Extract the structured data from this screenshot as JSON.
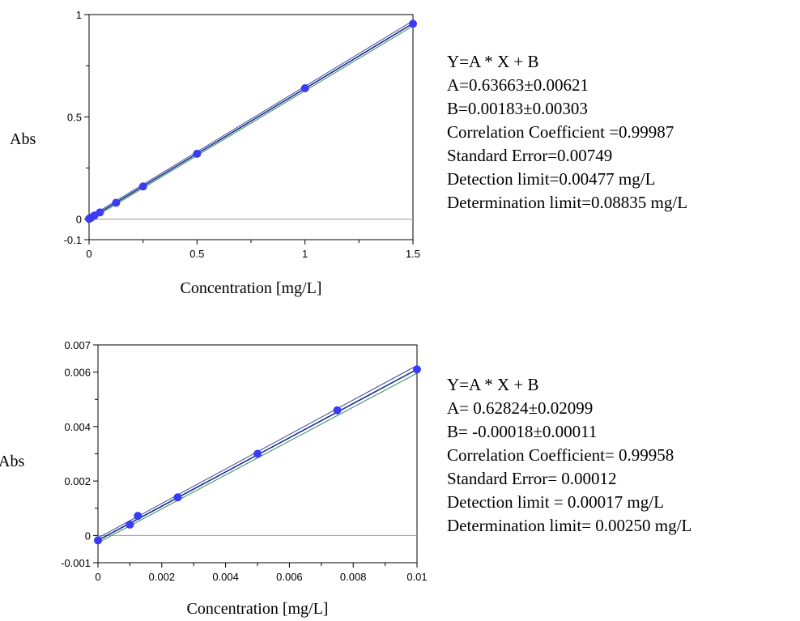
{
  "chart_data": [
    {
      "type": "scatter",
      "title": "",
      "xlabel": "Concentration [mg/L]",
      "ylabel": "Abs",
      "xlim": [
        0,
        1.5
      ],
      "ylim": [
        -0.1,
        1
      ],
      "x_ticks": [
        0,
        0.5,
        1,
        1.5
      ],
      "x_tick_labels": [
        "0",
        "0.5",
        "1",
        "1.5"
      ],
      "y_ticks": [
        -0.1,
        0,
        0.5,
        1
      ],
      "y_tick_labels": [
        "-0.1",
        "0",
        "0.5",
        "1"
      ],
      "grid": false,
      "zero_line": true,
      "points": {
        "x": [
          0,
          0.005,
          0.01,
          0.025,
          0.05,
          0.125,
          0.25,
          0.5,
          1.0,
          1.5
        ],
        "y": [
          0.0018,
          0.005,
          0.008,
          0.018,
          0.033,
          0.08,
          0.16,
          0.32,
          0.64,
          0.955
        ]
      },
      "fit": {
        "slope": 0.63663,
        "intercept": 0.00183
      },
      "stats": [
        "Y=A * X + B",
        "A=0.63663±0.00621",
        "B=0.00183±0.00303",
        "Correlation Coefficient =0.99987",
        "Standard Error=0.00749",
        "Detection limit=0.00477 mg/L",
        "Determination limit=0.08835 mg/L"
      ]
    },
    {
      "type": "scatter",
      "title": "",
      "xlabel": "Concentration [mg/L]",
      "ylabel": "Abs",
      "xlim": [
        0,
        0.01
      ],
      "ylim": [
        -0.001,
        0.007
      ],
      "x_ticks": [
        0,
        0.002,
        0.004,
        0.006,
        0.008,
        0.01
      ],
      "x_tick_labels": [
        "0",
        "0.002",
        "0.004",
        "0.006",
        "0.008",
        "0.01"
      ],
      "y_ticks": [
        -0.001,
        0,
        0.002,
        0.004,
        0.006,
        0.007
      ],
      "y_tick_labels": [
        "-0.001",
        "0",
        "0.002",
        "0.004",
        "0.006",
        "0.007"
      ],
      "grid": false,
      "zero_line": true,
      "points": {
        "x": [
          0,
          0.001,
          0.00125,
          0.0025,
          0.005,
          0.0075,
          0.01
        ],
        "y": [
          -0.00018,
          0.0004,
          0.00072,
          0.0014,
          0.003,
          0.0046,
          0.0061
        ]
      },
      "fit": {
        "slope": 0.62824,
        "intercept": -0.00018
      },
      "stats": [
        "Y=A * X + B",
        "A= 0.62824±0.02099",
        "B= -0.00018±0.00011",
        "Correlation Coefficient= 0.99958",
        "Standard Error= 0.00012",
        "Detection limit = 0.00017 mg/L",
        "Determination limit= 0.00250 mg/L"
      ]
    }
  ],
  "colors": {
    "points": "#3a3cf5",
    "fit_line": "#1b2a8c",
    "band_upper": "#3a4a9a",
    "band_lower": "#2d8a5a",
    "axis": "#000000",
    "zero_line": "#999999"
  }
}
